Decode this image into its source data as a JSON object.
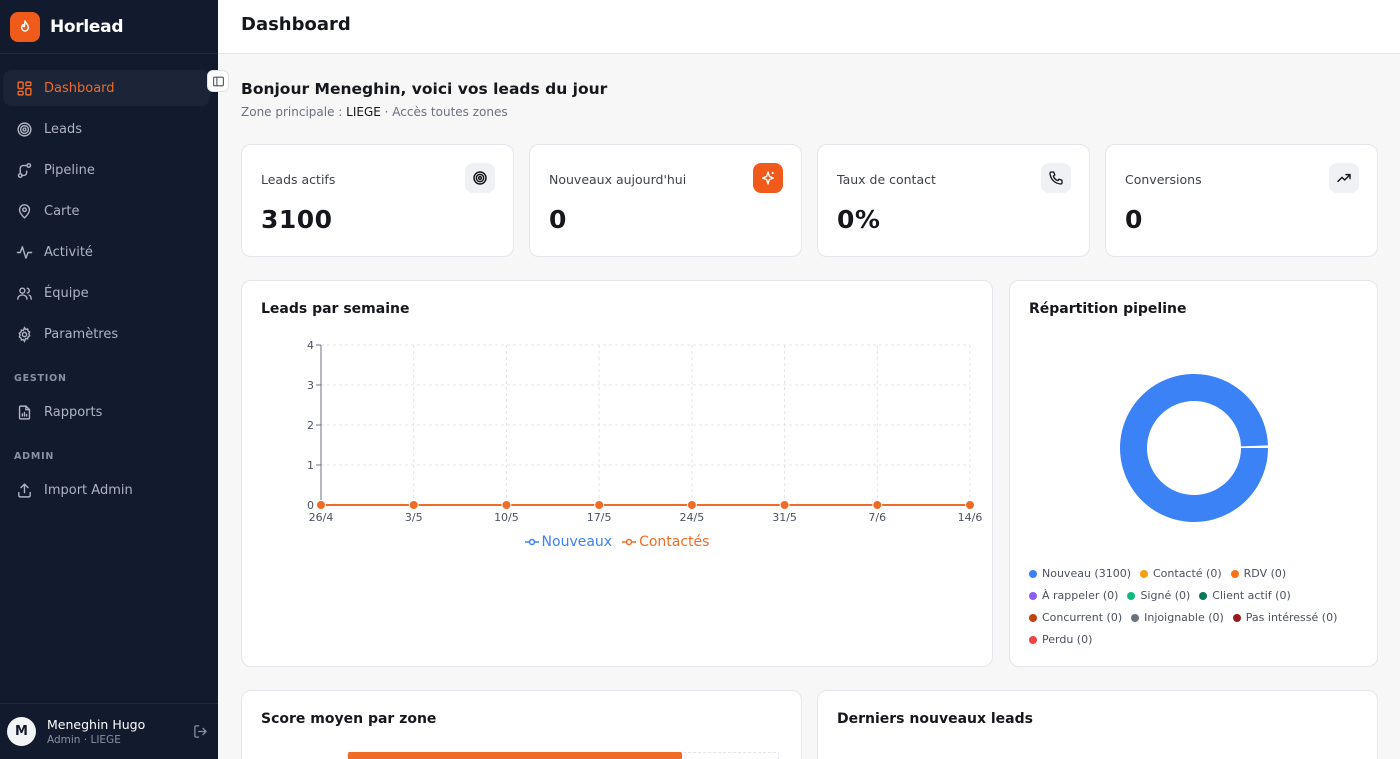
{
  "app": {
    "name": "Horlead"
  },
  "sidebar": {
    "items": [
      {
        "label": "Dashboard",
        "icon": "grid-icon",
        "active": true
      },
      {
        "label": "Leads",
        "icon": "target-icon"
      },
      {
        "label": "Pipeline",
        "icon": "route-icon"
      },
      {
        "label": "Carte",
        "icon": "map-pin-icon"
      },
      {
        "label": "Activité",
        "icon": "activity-icon"
      },
      {
        "label": "Équipe",
        "icon": "users-icon"
      },
      {
        "label": "Paramètres",
        "icon": "gear-icon"
      }
    ],
    "section_gestion": "GESTION",
    "gestion_items": [
      {
        "label": "Rapports",
        "icon": "report-icon"
      }
    ],
    "section_admin": "ADMIN",
    "admin_items": [
      {
        "label": "Import Admin",
        "icon": "upload-icon"
      }
    ],
    "user": {
      "initial": "M",
      "name": "Meneghin Hugo",
      "role": "Admin · LIEGE"
    }
  },
  "header": {
    "title": "Dashboard"
  },
  "greeting": {
    "title": "Bonjour Meneghin, voici vos leads du jour",
    "zone_prefix": "Zone principale : ",
    "zone": "LIEGE",
    "zone_suffix": " · Accès toutes zones"
  },
  "stats": [
    {
      "label": "Leads actifs",
      "value": "3100",
      "icon": "target-icon"
    },
    {
      "label": "Nouveaux aujourd'hui",
      "value": "0",
      "icon": "sparkle-icon"
    },
    {
      "label": "Taux de contact",
      "value": "0%",
      "icon": "phone-icon"
    },
    {
      "label": "Conversions",
      "value": "0",
      "icon": "trend-up-icon"
    }
  ],
  "weekly_chart": {
    "title": "Leads par semaine",
    "chart_data": {
      "type": "line",
      "x": [
        "26/4",
        "3/5",
        "10/5",
        "17/5",
        "24/5",
        "31/5",
        "7/6",
        "14/6"
      ],
      "series": [
        {
          "name": "Nouveaux",
          "values": [
            0,
            0,
            0,
            0,
            0,
            0,
            0,
            0
          ],
          "color": "#3b82f6"
        },
        {
          "name": "Contactés",
          "values": [
            0,
            0,
            0,
            0,
            0,
            0,
            0,
            0
          ],
          "color": "#f06b26"
        }
      ],
      "ylim": [
        0,
        4
      ],
      "yticks": [
        0,
        1,
        2,
        3,
        4
      ],
      "grid": true,
      "legend": "bottom"
    }
  },
  "pipeline": {
    "title": "Répartition pipeline",
    "chart_data": {
      "type": "pie",
      "categories": [
        "Nouveau",
        "Contacté",
        "RDV",
        "À rappeler",
        "Signé",
        "Client actif",
        "Concurrent",
        "Injoignable",
        "Pas intéressé",
        "Perdu"
      ],
      "values": [
        3100,
        0,
        0,
        0,
        0,
        0,
        0,
        0,
        0,
        0
      ],
      "legend": "bottom"
    },
    "legend_rows": [
      [
        {
          "label": "Nouveau (3100)",
          "color": "#3b82f6"
        },
        {
          "label": "Contacté (0)",
          "color": "#f59e0b"
        },
        {
          "label": "RDV (0)",
          "color": "#f97316"
        }
      ],
      [
        {
          "label": "À rappeler (0)",
          "color": "#8b5cf6"
        },
        {
          "label": "Signé (0)",
          "color": "#10b981"
        },
        {
          "label": "Client actif (0)",
          "color": "#047857"
        }
      ],
      [
        {
          "label": "Concurrent (0)",
          "color": "#c2410c"
        },
        {
          "label": "Injoignable (0)",
          "color": "#6b7280"
        },
        {
          "label": "Pas intéressé (0)",
          "color": "#991b1b"
        }
      ],
      [
        {
          "label": "Perdu (0)",
          "color": "#ef4444"
        }
      ]
    ]
  },
  "score_zone": {
    "title": "Score moyen par zone"
  },
  "latest_leads": {
    "title": "Derniers nouveaux leads"
  }
}
